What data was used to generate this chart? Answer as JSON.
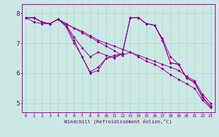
{
  "xlabel": "Windchill (Refroidissement éolien,°C)",
  "bg_color": "#cce8e4",
  "line_color": "#990099",
  "grid_color": "#aad8d4",
  "axis_color": "#660066",
  "text_color": "#660066",
  "xlim": [
    -0.5,
    23.5
  ],
  "ylim": [
    4.7,
    8.3
  ],
  "yticks": [
    5,
    6,
    7,
    8
  ],
  "xticks": [
    0,
    1,
    2,
    3,
    4,
    5,
    6,
    7,
    8,
    9,
    10,
    11,
    12,
    13,
    14,
    15,
    16,
    17,
    18,
    19,
    20,
    21,
    22,
    23
  ],
  "lines": [
    [
      7.85,
      7.85,
      7.7,
      7.65,
      7.8,
      7.65,
      7.5,
      7.4,
      7.25,
      7.1,
      7.0,
      6.9,
      6.8,
      6.7,
      6.6,
      6.5,
      6.4,
      6.3,
      6.2,
      6.1,
      5.9,
      5.75,
      5.3,
      5.0
    ],
    [
      7.85,
      7.85,
      7.7,
      7.65,
      7.8,
      7.65,
      7.5,
      7.35,
      7.2,
      7.05,
      6.9,
      6.75,
      6.6,
      6.7,
      6.55,
      6.4,
      6.3,
      6.15,
      5.95,
      5.8,
      5.65,
      5.5,
      5.1,
      4.85
    ],
    [
      7.85,
      7.85,
      7.7,
      7.65,
      7.8,
      7.6,
      7.2,
      6.85,
      6.55,
      6.7,
      6.6,
      6.5,
      6.65,
      7.85,
      7.85,
      7.65,
      7.6,
      7.15,
      6.55,
      6.3,
      5.85,
      5.7,
      5.2,
      4.9
    ],
    [
      7.85,
      7.7,
      7.65,
      7.65,
      7.8,
      7.6,
      7.1,
      6.55,
      6.05,
      6.2,
      6.5,
      6.6,
      6.65,
      7.85,
      7.85,
      7.65,
      7.6,
      7.1,
      6.35,
      6.3,
      5.85,
      5.7,
      5.2,
      4.9
    ],
    [
      7.85,
      7.85,
      7.7,
      7.65,
      7.8,
      7.55,
      7.0,
      6.55,
      6.0,
      6.1,
      6.5,
      6.55,
      6.65,
      7.85,
      7.85,
      7.65,
      7.6,
      7.1,
      6.35,
      6.3,
      5.85,
      5.7,
      5.2,
      4.9
    ]
  ]
}
